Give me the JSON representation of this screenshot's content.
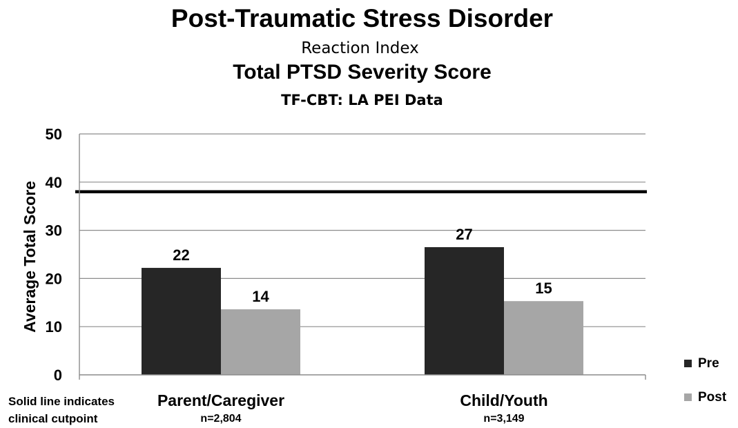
{
  "header": {
    "title": "Post-Traumatic Stress Disorder",
    "subtitle1": "Reaction Index",
    "subtitle2": "Total  PTSD Severity Score",
    "subtitle3": "TF-CBT: LA PEI Data"
  },
  "note": {
    "line1": "Solid line indicates",
    "line2": "clinical cutpoint"
  },
  "chart_data": {
    "type": "bar",
    "categories": [
      "Parent/Caregiver",
      "Child/Youth"
    ],
    "category_notes": [
      "n=2,804",
      "n=3,149"
    ],
    "series": [
      {
        "name": "Pre",
        "values": [
          22,
          27
        ],
        "plotted": [
          22.2,
          26.5
        ],
        "color": "#262626"
      },
      {
        "name": "Post",
        "values": [
          14,
          15
        ],
        "plotted": [
          13.6,
          15.3
        ],
        "color": "#a6a6a6"
      }
    ],
    "ylabel": "Average Total Score",
    "ylim": [
      0,
      50
    ],
    "yticks": [
      "0",
      "10",
      "20",
      "30",
      "40",
      "50"
    ],
    "reference_line": {
      "value": 38,
      "color": "#000000"
    },
    "grid": true,
    "legend": "bottom-right"
  }
}
